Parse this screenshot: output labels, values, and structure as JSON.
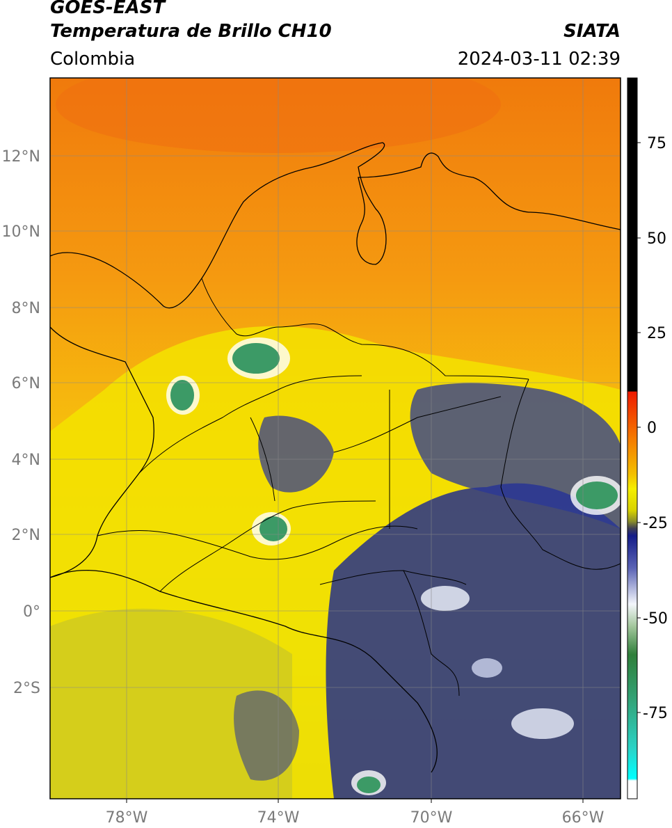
{
  "header": {
    "satellite": "GOES-EAST",
    "product": "Temperatura de Brillo CH10",
    "region": "Colombia",
    "agency": "SIATA",
    "datetime": "2024-03-11 02:39"
  },
  "axes": {
    "longitude_ticks": [
      "78°W",
      "74°W",
      "70°W",
      "66°W"
    ],
    "latitude_ticks": [
      "12°N",
      "10°N",
      "8°N",
      "6°N",
      "4°N",
      "2°N",
      "0°",
      "2°S"
    ]
  },
  "colorbar": {
    "ticks": [
      "75",
      "50",
      "25",
      "0",
      "-25",
      "-50",
      "-75"
    ]
  },
  "colors": {
    "warm": "#f59a10",
    "mid": "#f2e400",
    "cold_blue": "#1d2a8f",
    "very_cold_green": "#3d9a6a",
    "hot_black": "#000000"
  }
}
